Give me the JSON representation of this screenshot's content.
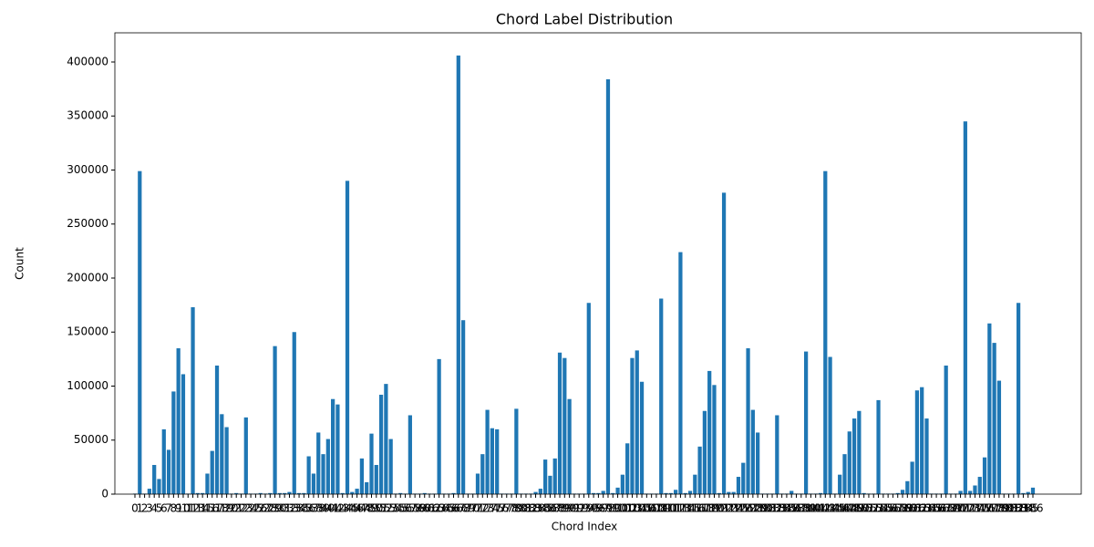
{
  "chart_data": {
    "type": "bar",
    "title": "Chord Label Distribution",
    "x_label": "Chord Index",
    "y_label": "Count",
    "color": "#1f77b4",
    "grid": false,
    "categories": [
      "0",
      "1",
      "2",
      "3",
      "4",
      "5",
      "6",
      "7",
      "8",
      "9",
      "10",
      "11",
      "12",
      "13",
      "14",
      "15",
      "16",
      "17",
      "18",
      "19",
      "20",
      "21",
      "22",
      "23",
      "24",
      "25",
      "26",
      "27",
      "28",
      "29",
      "30",
      "31",
      "32",
      "33",
      "34",
      "35",
      "36",
      "37",
      "38",
      "39",
      "40",
      "41",
      "42",
      "43",
      "44",
      "45",
      "46",
      "47",
      "48",
      "49",
      "50",
      "51",
      "52",
      "53",
      "54",
      "55",
      "56",
      "57",
      "58",
      "59",
      "60",
      "61",
      "62",
      "63",
      "64",
      "65",
      "66",
      "67",
      "68",
      "69",
      "70",
      "71",
      "72",
      "73",
      "74",
      "75",
      "76",
      "77",
      "78",
      "79",
      "80",
      "81",
      "82",
      "83",
      "84",
      "85",
      "86",
      "87",
      "88",
      "89",
      "90",
      "91",
      "92",
      "93",
      "94",
      "95",
      "96",
      "97",
      "98",
      "99",
      "100",
      "101",
      "102",
      "103",
      "104",
      "105",
      "106",
      "107",
      "108",
      "109",
      "110",
      "111",
      "112",
      "113",
      "114",
      "115",
      "116",
      "117",
      "118",
      "119",
      "120",
      "121",
      "122",
      "123",
      "124",
      "125",
      "126",
      "127",
      "128",
      "129",
      "130",
      "131",
      "132",
      "133",
      "134",
      "135",
      "136",
      "137",
      "138",
      "139",
      "140",
      "141",
      "142",
      "143",
      "144",
      "145",
      "146",
      "147",
      "148",
      "149",
      "150",
      "151",
      "152",
      "153",
      "154",
      "155",
      "156",
      "157",
      "158",
      "159",
      "160",
      "161",
      "162",
      "163",
      "164",
      "165",
      "166",
      "167",
      "168",
      "169",
      "170",
      "171",
      "172",
      "173",
      "174",
      "175",
      "176",
      "177",
      "178",
      "179",
      "180",
      "181",
      "182",
      "183",
      "184",
      "185",
      "186"
    ],
    "values": [
      500,
      299000,
      500,
      5000,
      27000,
      14000,
      60000,
      41000,
      95000,
      135000,
      111000,
      500,
      173000,
      1000,
      1000,
      19000,
      40000,
      119000,
      74000,
      62000,
      500,
      1000,
      500,
      71000,
      500,
      500,
      1000,
      500,
      1000,
      137000,
      1000,
      1000,
      2000,
      150000,
      1000,
      1000,
      35000,
      19000,
      57000,
      37000,
      51000,
      88000,
      83000,
      1000,
      290000,
      2000,
      5000,
      33000,
      11000,
      56000,
      27000,
      92000,
      102000,
      51000,
      500,
      1000,
      500,
      73000,
      500,
      500,
      1000,
      500,
      500,
      125000,
      500,
      500,
      1000,
      406000,
      161000,
      500,
      500,
      19000,
      37000,
      78000,
      61000,
      60000,
      500,
      500,
      500,
      79000,
      500,
      500,
      500,
      2000,
      5000,
      32000,
      17000,
      33000,
      131000,
      126000,
      88000,
      500,
      500,
      500,
      177000,
      1000,
      1000,
      3000,
      384000,
      1000,
      6000,
      18000,
      47000,
      126000,
      133000,
      104000,
      500,
      500,
      500,
      181000,
      1000,
      1000,
      4000,
      224000,
      1000,
      3000,
      18000,
      44000,
      77000,
      114000,
      101000,
      1000,
      279000,
      2000,
      2000,
      16000,
      29000,
      135000,
      78000,
      57000,
      500,
      500,
      500,
      73000,
      500,
      500,
      3000,
      500,
      500,
      132000,
      500,
      500,
      1000,
      299000,
      127000,
      500,
      18000,
      37000,
      58000,
      70000,
      77000,
      1000,
      500,
      500,
      87000,
      500,
      500,
      500,
      1000,
      4000,
      12000,
      30000,
      96000,
      99000,
      70000,
      500,
      500,
      500,
      119000,
      500,
      500,
      3000,
      345000,
      3000,
      8000,
      16000,
      34000,
      158000,
      140000,
      105000,
      500,
      500,
      500,
      177000,
      1000,
      2000,
      6000
    ],
    "ylim": [
      0,
      427000
    ],
    "yticks": [
      0,
      50000,
      100000,
      150000,
      200000,
      250000,
      300000,
      350000,
      400000
    ]
  }
}
